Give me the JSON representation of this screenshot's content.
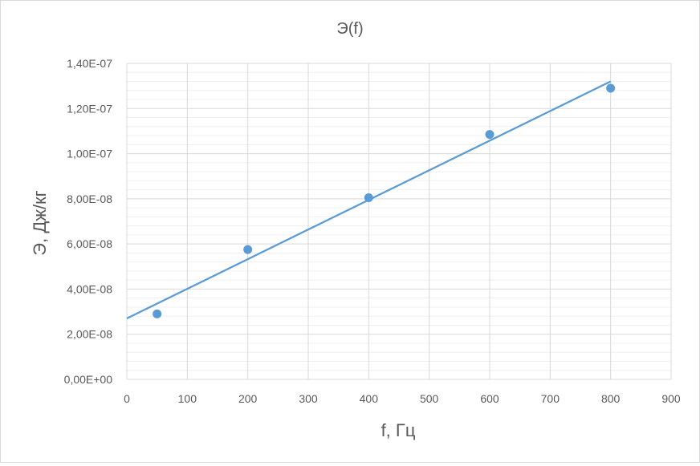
{
  "chart_data": {
    "type": "scatter",
    "title": "Э(f)",
    "xlabel": "f, Гц",
    "ylabel": "Э, Дж/кг",
    "xlim": [
      0,
      900
    ],
    "ylim": [
      0,
      1.4e-07
    ],
    "x_ticks": [
      "0",
      "100",
      "200",
      "300",
      "400",
      "500",
      "600",
      "700",
      "800",
      "900"
    ],
    "y_ticks": [
      "0,00E+00",
      "2,00E-08",
      "4,00E-08",
      "6,00E-08",
      "8,00E-08",
      "1,00E-07",
      "1,20E-07",
      "1,40E-07"
    ],
    "grid": true,
    "minor_grid": true,
    "legend": "none",
    "series": [
      {
        "x": [
          50,
          200,
          400,
          600,
          800
        ],
        "y": [
          2.9e-08,
          5.75e-08,
          8.05e-08,
          1.085e-07,
          1.29e-07
        ],
        "color": "#5b9bd5",
        "trendline": {
          "type": "linear",
          "x_range": [
            0,
            800
          ],
          "y_start": 2.7e-08,
          "y_end": 1.32e-07
        }
      }
    ]
  }
}
